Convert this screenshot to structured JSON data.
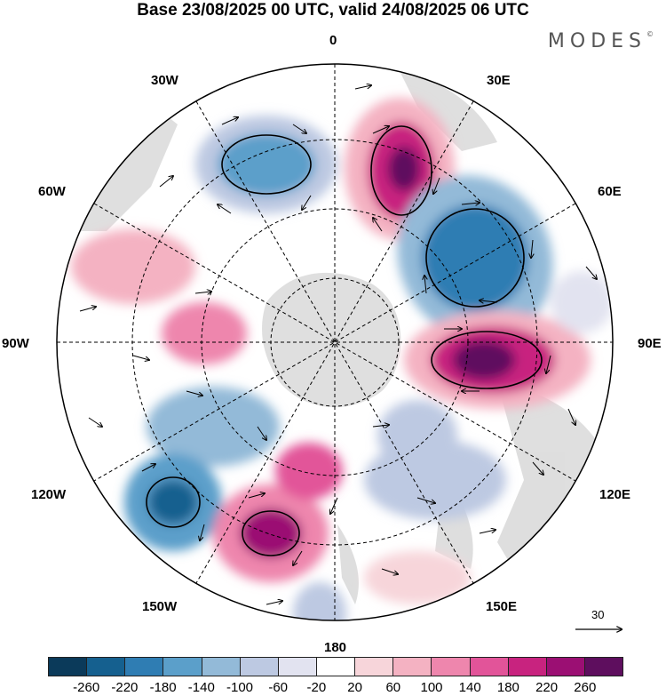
{
  "title": "Base 23/08/2025 00 UTC, valid 24/08/2025 06 UTC",
  "brand": "MODES",
  "brand_mark": "©",
  "map_labels": {
    "top": "0",
    "n30e": "30E",
    "n60e": "60E",
    "e90": "90E",
    "s120e": "120E",
    "s150e": "150E",
    "bottom": "180",
    "s150w": "150W",
    "s120w": "120W",
    "w90": "90W",
    "n60w": "60W",
    "n30w": "30W"
  },
  "reference_vector": "30",
  "colorbar": {
    "colors": [
      "#0b3a5a",
      "#15608f",
      "#2f7db3",
      "#5b9fca",
      "#93bad8",
      "#bdc9e2",
      "#e2e3f0",
      "#ffffff",
      "#f7d5da",
      "#f4b2c2",
      "#ee86ad",
      "#e25499",
      "#c8237f",
      "#9b0f73",
      "#5e0e5e"
    ],
    "ticks": [
      "-260",
      "-220",
      "-180",
      "-140",
      "-100",
      "-60",
      "-20",
      "20",
      "60",
      "100",
      "140",
      "180",
      "220",
      "260"
    ]
  },
  "colors": {
    "land": "#d6d6d6",
    "frame": "#000000"
  }
}
